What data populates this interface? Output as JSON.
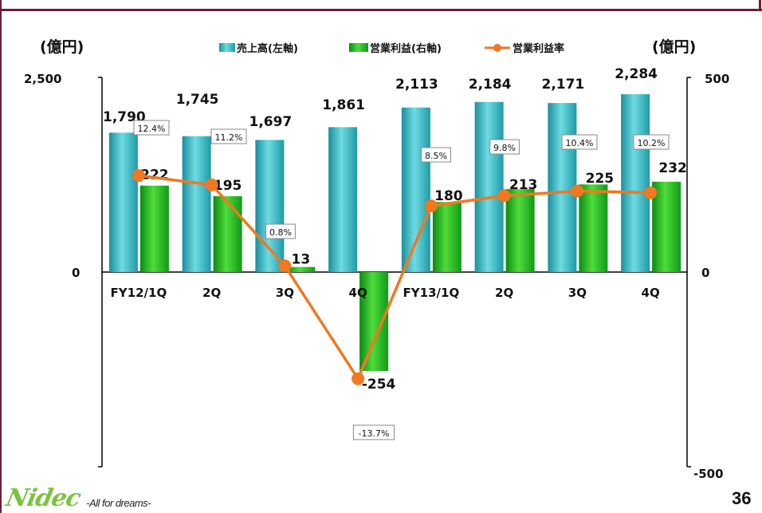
{
  "chart_data": {
    "type": "bar",
    "categories": [
      "FY12/1Q",
      "2Q",
      "3Q",
      "4Q",
      "FY13/1Q",
      "2Q",
      "3Q",
      "4Q"
    ],
    "series": [
      {
        "name": "売上高(左軸)",
        "axis": "left",
        "color": "#2ab3c0",
        "values": [
          1790,
          1745,
          1697,
          1861,
          2113,
          2184,
          2171,
          2284
        ],
        "labels": [
          "1,790",
          "1,745",
          "1,697",
          "1,861",
          "2,113",
          "2,184",
          "2,171",
          "2,284"
        ]
      },
      {
        "name": "営業利益(右軸)",
        "axis": "right",
        "color": "#1fae1f",
        "values": [
          222,
          195,
          13,
          -254,
          180,
          213,
          225,
          232
        ],
        "labels": [
          "222",
          "195",
          "13",
          "-254",
          "180",
          "213",
          "225",
          "232"
        ]
      },
      {
        "name": "営業利益率",
        "type": "line",
        "color": "#f07820",
        "values": [
          12.4,
          11.2,
          0.8,
          -13.7,
          8.5,
          9.8,
          10.4,
          10.2
        ],
        "labels": [
          "12.4%",
          "11.2%",
          "0.8%",
          "-13.7%",
          "8.5%",
          "9.8%",
          "10.4%",
          "10.2%"
        ]
      }
    ],
    "left_axis": {
      "unit_label": "(億円)",
      "ylim": [
        -2500,
        2500
      ],
      "ticks": [
        "2,500",
        "0"
      ]
    },
    "right_axis": {
      "unit_label": "(億円)",
      "ylim": [
        -500,
        500
      ],
      "ticks": [
        "500",
        "0",
        "-500"
      ]
    },
    "legend_placement": "top-center",
    "grid": false
  },
  "footer": {
    "logo_text": "Nidec",
    "tagline": "-All for dreams-",
    "page_number": "36"
  }
}
